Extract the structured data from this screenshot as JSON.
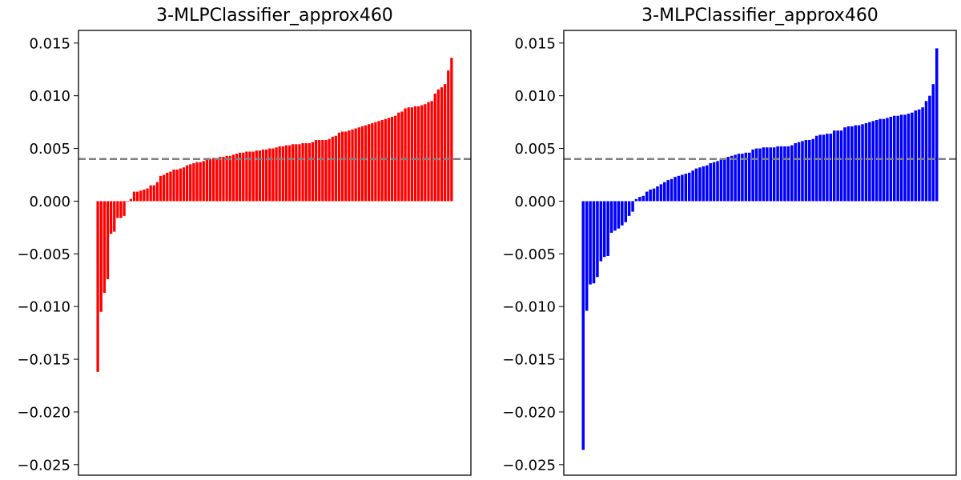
{
  "chart_data": [
    {
      "type": "bar",
      "title": "3-MLPClassifier_approx460",
      "xlabel": "",
      "ylabel": "",
      "ylim": [
        -0.026,
        0.0162
      ],
      "yticks": [
        0.015,
        0.01,
        0.005,
        0.0,
        -0.005,
        -0.01,
        -0.015,
        -0.02,
        -0.025
      ],
      "ytick_labels": [
        "0.015",
        "0.010",
        "0.005",
        "0.000",
        "−0.005",
        "−0.010",
        "−0.015",
        "−0.020",
        "−0.025"
      ],
      "reference_line": 0.004,
      "reference_line_color": "#808080",
      "bar_color": "#ff0000",
      "values": [
        -0.0162,
        -0.0105,
        -0.0087,
        -0.0074,
        -0.0031,
        -0.0029,
        -0.0016,
        -0.0016,
        -0.0014,
        0.0,
        0.0002,
        0.0009,
        0.0009,
        0.001,
        0.0011,
        0.0012,
        0.0015,
        0.0015,
        0.0018,
        0.0024,
        0.0025,
        0.0027,
        0.0028,
        0.003,
        0.003,
        0.0031,
        0.0032,
        0.0034,
        0.0035,
        0.0036,
        0.0037,
        0.0037,
        0.0038,
        0.0039,
        0.004,
        0.0041,
        0.0041,
        0.0042,
        0.0042,
        0.0043,
        0.0043,
        0.0044,
        0.0045,
        0.0046,
        0.0046,
        0.0047,
        0.0047,
        0.0047,
        0.0048,
        0.0048,
        0.0049,
        0.0049,
        0.005,
        0.005,
        0.0051,
        0.0052,
        0.0052,
        0.0053,
        0.0053,
        0.0054,
        0.0054,
        0.0054,
        0.0055,
        0.0055,
        0.0055,
        0.0056,
        0.0058,
        0.0058,
        0.0058,
        0.0058,
        0.0059,
        0.0061,
        0.0062,
        0.0065,
        0.0066,
        0.0066,
        0.0067,
        0.0068,
        0.0069,
        0.007,
        0.0071,
        0.0072,
        0.0073,
        0.0074,
        0.0075,
        0.0076,
        0.0077,
        0.0078,
        0.0079,
        0.008,
        0.0081,
        0.0084,
        0.0085,
        0.0088,
        0.0089,
        0.0089,
        0.009,
        0.009,
        0.0091,
        0.0092,
        0.0094,
        0.0095,
        0.0102,
        0.0106,
        0.0108,
        0.0111,
        0.0124,
        0.0136
      ]
    },
    {
      "type": "bar",
      "title": "3-MLPClassifier_approx460",
      "xlabel": "",
      "ylabel": "",
      "ylim": [
        -0.026,
        0.0162
      ],
      "yticks": [
        0.015,
        0.01,
        0.005,
        0.0,
        -0.005,
        -0.01,
        -0.015,
        -0.02,
        -0.025
      ],
      "ytick_labels": [
        "0.015",
        "0.010",
        "0.005",
        "0.000",
        "−0.005",
        "−0.010",
        "−0.015",
        "−0.020",
        "−0.025"
      ],
      "reference_line": 0.004,
      "reference_line_color": "#808080",
      "bar_color": "#0000ff",
      "values": [
        -0.0236,
        -0.0104,
        -0.0079,
        -0.0078,
        -0.0072,
        -0.0057,
        -0.0053,
        -0.0052,
        -0.003,
        -0.0028,
        -0.0026,
        -0.0023,
        -0.002,
        -0.0014,
        -0.001,
        0.0002,
        0.0004,
        0.0005,
        0.0009,
        0.0011,
        0.0012,
        0.0014,
        0.0016,
        0.0018,
        0.002,
        0.0021,
        0.0023,
        0.0024,
        0.0025,
        0.0026,
        0.0027,
        0.0029,
        0.0031,
        0.0032,
        0.0033,
        0.0034,
        0.0036,
        0.0037,
        0.0038,
        0.004,
        0.0041,
        0.0042,
        0.0043,
        0.0044,
        0.0045,
        0.0045,
        0.0046,
        0.0046,
        0.0049,
        0.005,
        0.005,
        0.0051,
        0.0051,
        0.0051,
        0.0051,
        0.0052,
        0.0052,
        0.0052,
        0.0052,
        0.0053,
        0.0055,
        0.0056,
        0.0057,
        0.0058,
        0.0058,
        0.0059,
        0.0062,
        0.0063,
        0.0063,
        0.0064,
        0.0064,
        0.0067,
        0.0067,
        0.0067,
        0.007,
        0.0071,
        0.0071,
        0.0072,
        0.0072,
        0.0073,
        0.0074,
        0.0075,
        0.0076,
        0.0077,
        0.0078,
        0.0078,
        0.0079,
        0.008,
        0.0081,
        0.0081,
        0.0082,
        0.0082,
        0.0083,
        0.0084,
        0.0086,
        0.0087,
        0.0089,
        0.0095,
        0.01,
        0.0111,
        0.0145
      ]
    }
  ]
}
